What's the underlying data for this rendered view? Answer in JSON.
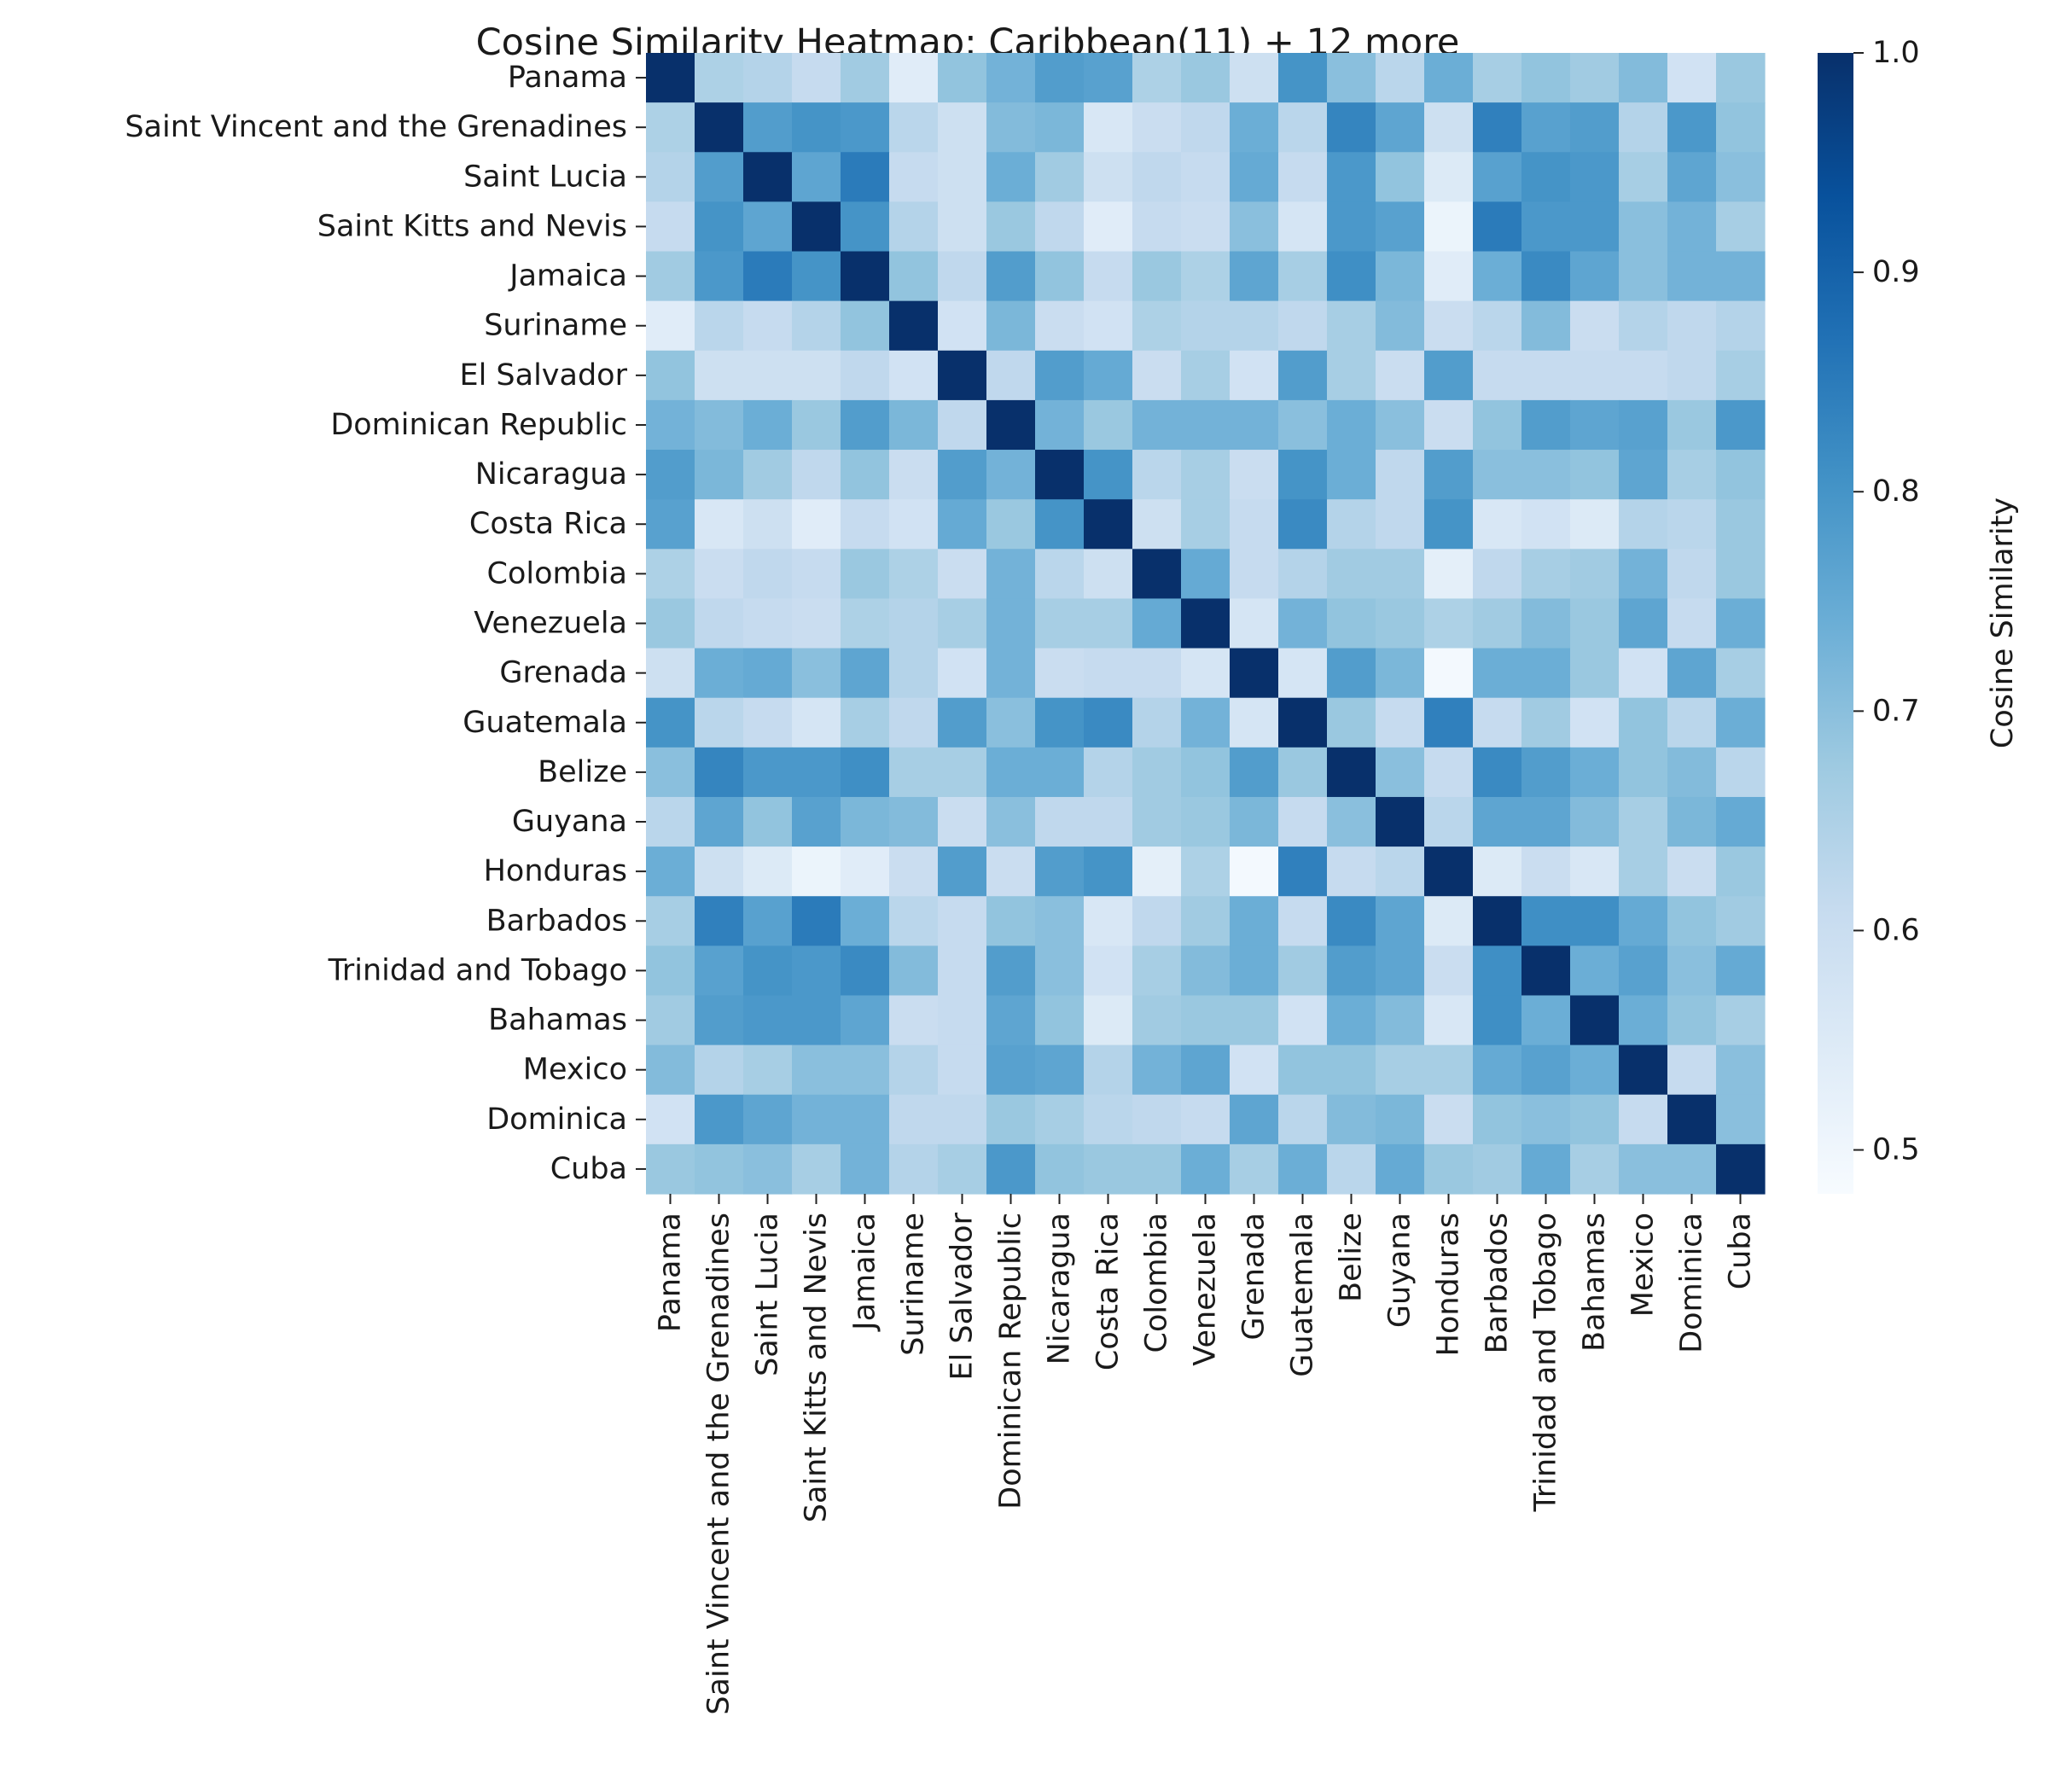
{
  "chart_data": {
    "type": "heatmap",
    "title": "Cosine Similarity Heatmap: Caribbean(11) + 12 more",
    "colormap": "Blues",
    "colorbar": {
      "label": "Cosine Similarity",
      "vmin": 0.48,
      "vmax": 1.0,
      "ticks": [
        0.5,
        0.6,
        0.7,
        0.8,
        0.9,
        1.0
      ],
      "tick_labels": [
        "0.5",
        "0.6",
        "0.7",
        "0.8",
        "0.9",
        "1.0"
      ]
    },
    "labels": [
      "Panama",
      "Saint Vincent and the Grenadines",
      "Saint Lucia",
      "Saint Kitts and Nevis",
      "Jamaica",
      "Suriname",
      "El Salvador",
      "Dominican Republic",
      "Nicaragua",
      "Costa Rica",
      "Colombia",
      "Venezuela",
      "Grenada",
      "Guatemala",
      "Belize",
      "Guyana",
      "Honduras",
      "Barbados",
      "Trinidad and Tobago",
      "Bahamas",
      "Mexico",
      "Dominica",
      "Cuba"
    ],
    "values": [
      [
        1.0,
        0.65,
        0.64,
        0.61,
        0.67,
        0.54,
        0.69,
        0.73,
        0.78,
        0.77,
        0.65,
        0.68,
        0.59,
        0.8,
        0.7,
        0.63,
        0.74,
        0.66,
        0.69,
        0.67,
        0.71,
        0.58,
        0.68
      ],
      [
        0.65,
        1.0,
        0.78,
        0.8,
        0.79,
        0.63,
        0.59,
        0.71,
        0.72,
        0.56,
        0.6,
        0.62,
        0.74,
        0.63,
        0.83,
        0.76,
        0.59,
        0.84,
        0.77,
        0.78,
        0.64,
        0.79,
        0.69
      ],
      [
        0.64,
        0.78,
        1.0,
        0.76,
        0.85,
        0.61,
        0.59,
        0.74,
        0.67,
        0.59,
        0.62,
        0.61,
        0.75,
        0.61,
        0.79,
        0.69,
        0.55,
        0.77,
        0.8,
        0.79,
        0.66,
        0.76,
        0.7
      ],
      [
        0.61,
        0.8,
        0.76,
        1.0,
        0.8,
        0.64,
        0.59,
        0.68,
        0.62,
        0.54,
        0.61,
        0.6,
        0.7,
        0.57,
        0.79,
        0.77,
        0.51,
        0.85,
        0.79,
        0.79,
        0.7,
        0.73,
        0.66
      ],
      [
        0.67,
        0.79,
        0.85,
        0.8,
        1.0,
        0.69,
        0.62,
        0.78,
        0.69,
        0.61,
        0.68,
        0.65,
        0.76,
        0.66,
        0.81,
        0.72,
        0.54,
        0.74,
        0.82,
        0.76,
        0.7,
        0.73,
        0.73
      ],
      [
        0.54,
        0.63,
        0.61,
        0.64,
        0.69,
        1.0,
        0.58,
        0.72,
        0.6,
        0.58,
        0.65,
        0.64,
        0.64,
        0.62,
        0.66,
        0.71,
        0.6,
        0.63,
        0.71,
        0.6,
        0.64,
        0.62,
        0.64
      ],
      [
        0.69,
        0.59,
        0.59,
        0.59,
        0.62,
        0.58,
        1.0,
        0.62,
        0.78,
        0.75,
        0.6,
        0.66,
        0.58,
        0.78,
        0.66,
        0.6,
        0.78,
        0.61,
        0.61,
        0.61,
        0.61,
        0.62,
        0.66
      ],
      [
        0.73,
        0.71,
        0.74,
        0.68,
        0.78,
        0.72,
        0.62,
        1.0,
        0.73,
        0.68,
        0.73,
        0.73,
        0.73,
        0.7,
        0.74,
        0.7,
        0.6,
        0.69,
        0.78,
        0.76,
        0.77,
        0.68,
        0.79
      ],
      [
        0.78,
        0.72,
        0.67,
        0.62,
        0.69,
        0.6,
        0.78,
        0.73,
        1.0,
        0.8,
        0.63,
        0.66,
        0.6,
        0.8,
        0.74,
        0.62,
        0.78,
        0.7,
        0.7,
        0.69,
        0.76,
        0.66,
        0.69
      ],
      [
        0.77,
        0.56,
        0.59,
        0.54,
        0.61,
        0.58,
        0.75,
        0.68,
        0.8,
        1.0,
        0.59,
        0.66,
        0.61,
        0.82,
        0.64,
        0.62,
        0.8,
        0.56,
        0.58,
        0.55,
        0.64,
        0.63,
        0.68
      ],
      [
        0.65,
        0.6,
        0.62,
        0.61,
        0.68,
        0.65,
        0.6,
        0.73,
        0.63,
        0.59,
        1.0,
        0.75,
        0.61,
        0.64,
        0.67,
        0.67,
        0.53,
        0.62,
        0.66,
        0.67,
        0.73,
        0.62,
        0.68
      ],
      [
        0.68,
        0.62,
        0.61,
        0.6,
        0.65,
        0.64,
        0.66,
        0.73,
        0.66,
        0.66,
        0.75,
        1.0,
        0.57,
        0.73,
        0.69,
        0.68,
        0.65,
        0.67,
        0.71,
        0.68,
        0.76,
        0.61,
        0.74
      ],
      [
        0.59,
        0.74,
        0.75,
        0.7,
        0.76,
        0.64,
        0.58,
        0.73,
        0.6,
        0.61,
        0.61,
        0.57,
        1.0,
        0.57,
        0.78,
        0.72,
        0.49,
        0.74,
        0.74,
        0.68,
        0.58,
        0.76,
        0.66
      ],
      [
        0.8,
        0.63,
        0.61,
        0.57,
        0.66,
        0.62,
        0.78,
        0.7,
        0.8,
        0.82,
        0.64,
        0.73,
        0.57,
        1.0,
        0.68,
        0.61,
        0.84,
        0.61,
        0.67,
        0.58,
        0.69,
        0.63,
        0.74
      ],
      [
        0.7,
        0.83,
        0.79,
        0.79,
        0.81,
        0.66,
        0.66,
        0.74,
        0.74,
        0.64,
        0.67,
        0.69,
        0.78,
        0.68,
        1.0,
        0.7,
        0.61,
        0.82,
        0.78,
        0.74,
        0.69,
        0.71,
        0.63
      ],
      [
        0.63,
        0.76,
        0.69,
        0.77,
        0.72,
        0.71,
        0.6,
        0.7,
        0.62,
        0.62,
        0.67,
        0.68,
        0.72,
        0.61,
        0.7,
        1.0,
        0.63,
        0.76,
        0.76,
        0.71,
        0.66,
        0.72,
        0.75
      ],
      [
        0.74,
        0.59,
        0.55,
        0.51,
        0.54,
        0.6,
        0.78,
        0.6,
        0.78,
        0.8,
        0.53,
        0.65,
        0.49,
        0.84,
        0.61,
        0.63,
        1.0,
        0.55,
        0.6,
        0.56,
        0.66,
        0.6,
        0.68
      ],
      [
        0.66,
        0.84,
        0.77,
        0.85,
        0.74,
        0.63,
        0.61,
        0.69,
        0.7,
        0.56,
        0.62,
        0.67,
        0.74,
        0.61,
        0.82,
        0.76,
        0.55,
        1.0,
        0.81,
        0.81,
        0.75,
        0.69,
        0.67
      ],
      [
        0.69,
        0.77,
        0.8,
        0.79,
        0.82,
        0.71,
        0.61,
        0.78,
        0.7,
        0.58,
        0.66,
        0.71,
        0.74,
        0.67,
        0.78,
        0.76,
        0.6,
        0.81,
        1.0,
        0.74,
        0.77,
        0.7,
        0.75
      ],
      [
        0.67,
        0.78,
        0.79,
        0.79,
        0.76,
        0.6,
        0.61,
        0.76,
        0.69,
        0.55,
        0.67,
        0.68,
        0.68,
        0.58,
        0.74,
        0.71,
        0.56,
        0.81,
        0.74,
        1.0,
        0.74,
        0.69,
        0.66
      ],
      [
        0.71,
        0.64,
        0.66,
        0.7,
        0.7,
        0.64,
        0.61,
        0.77,
        0.76,
        0.64,
        0.73,
        0.76,
        0.58,
        0.69,
        0.69,
        0.66,
        0.66,
        0.75,
        0.77,
        0.74,
        1.0,
        0.61,
        0.7
      ],
      [
        0.58,
        0.79,
        0.76,
        0.73,
        0.73,
        0.62,
        0.62,
        0.68,
        0.66,
        0.63,
        0.62,
        0.61,
        0.76,
        0.63,
        0.71,
        0.72,
        0.6,
        0.69,
        0.7,
        0.69,
        0.61,
        1.0,
        0.7
      ],
      [
        0.68,
        0.69,
        0.7,
        0.66,
        0.73,
        0.64,
        0.66,
        0.79,
        0.69,
        0.68,
        0.68,
        0.74,
        0.66,
        0.74,
        0.63,
        0.75,
        0.68,
        0.67,
        0.75,
        0.66,
        0.7,
        0.7,
        1.0
      ]
    ]
  }
}
